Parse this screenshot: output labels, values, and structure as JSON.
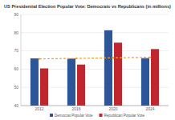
{
  "chart_data": {
    "type": "bar",
    "title": "US Presidential Election Popular Vote: Democrats vs Republicans (in millions)",
    "categories": [
      "2012",
      "2016",
      "2020",
      "2024"
    ],
    "series": [
      {
        "name": "Democrat Popular Vote",
        "color": "#2e5597",
        "values": [
          65.9,
          65.8,
          81.3,
          66.0
        ]
      },
      {
        "name": "Republican Popular Vote",
        "color": "#c0262d",
        "values": [
          60.4,
          62.5,
          74.5,
          71.0
        ]
      },
      {
        "type": "line",
        "color": "#f0a030",
        "line_style": "dashed",
        "marker": "circle",
        "values": [
          65.6,
          65.9,
          66.2,
          66.5
        ]
      }
    ],
    "ylim": [
      40,
      90
    ],
    "yticks": [
      40,
      50,
      60,
      70,
      80,
      90
    ],
    "grid": true,
    "legend": "bottom"
  }
}
